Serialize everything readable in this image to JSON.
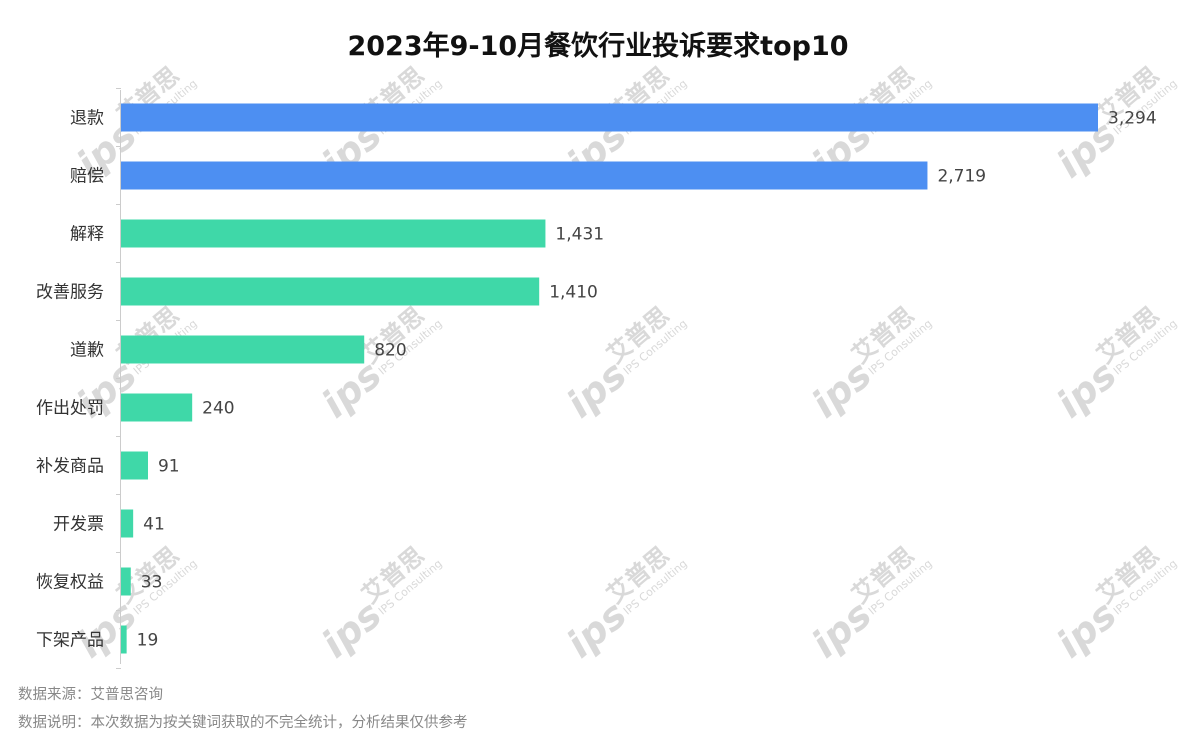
{
  "chart_data": {
    "type": "bar",
    "orientation": "horizontal",
    "title": "2023年9-10月餐饮行业投诉要求top10",
    "categories": [
      "退款",
      "赔偿",
      "解释",
      "改善服务",
      "道歉",
      "作出处罚",
      "补发商品",
      "开发票",
      "恢复权益",
      "下架产品"
    ],
    "values": [
      3294,
      2719,
      1431,
      1410,
      820,
      240,
      91,
      41,
      33,
      19
    ],
    "value_labels": [
      "3,294",
      "2,719",
      "1,431",
      "1,410",
      "820",
      "240",
      "91",
      "41",
      "33",
      "19"
    ],
    "highlight_count": 2,
    "colors": {
      "highlight": "#4d8ff2",
      "normal": "#3fd8a8",
      "axis": "#cccccc"
    },
    "xlim": [
      0,
      3294
    ],
    "grid": false,
    "legend": "none"
  },
  "footer": {
    "source": "数据来源：艾普思咨询",
    "note": "数据说明：本次数据为按关键词获取的不完全统计，分析结果仅供参考"
  },
  "watermark": {
    "brand": "艾普思",
    "sub": "IPS Consulting",
    "logo": "ips"
  }
}
